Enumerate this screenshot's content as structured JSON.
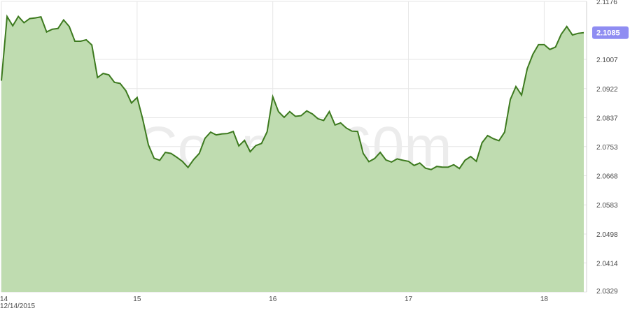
{
  "chart_data": {
    "type": "area",
    "watermark": "Copper 60m",
    "y_ticks": [
      "2.1176",
      "2.1007",
      "2.0922",
      "2.0837",
      "2.0753",
      "2.0668",
      "2.0583",
      "2.0498",
      "2.0414",
      "2.0329"
    ],
    "y_tick_values": [
      2.1176,
      2.1007,
      2.0922,
      2.0837,
      2.0753,
      2.0668,
      2.0583,
      2.0498,
      2.0414,
      2.0329
    ],
    "ylim": [
      2.0329,
      2.1176
    ],
    "x_tick_labels": [
      "14",
      "15",
      "16",
      "17",
      "18"
    ],
    "x_tick_values": [
      0,
      24,
      48,
      72,
      96
    ],
    "xlim": [
      0,
      103.5
    ],
    "date_label": "12/14/2015",
    "last_value": "2.1085",
    "grid": true,
    "colors": {
      "line": "#3d7a1f",
      "fill": "#bfdcb0",
      "badge": "#8f8df2",
      "grid": "#e6e6e6"
    },
    "x": [
      0,
      1,
      2,
      3,
      4,
      5,
      6,
      7,
      8,
      9,
      10,
      11,
      12,
      13,
      14,
      15,
      16,
      17,
      18,
      19,
      20,
      21,
      22,
      23,
      24,
      25,
      26,
      27,
      28,
      29,
      30,
      31,
      32,
      33,
      34,
      35,
      36,
      37,
      38,
      39,
      40,
      41,
      42,
      43,
      44,
      45,
      46,
      47,
      48,
      49,
      50,
      51,
      52,
      53,
      54,
      55,
      56,
      57,
      58,
      59,
      60,
      61,
      62,
      63,
      64,
      65,
      66,
      67,
      68,
      69,
      70,
      71,
      72,
      73,
      74,
      75,
      76,
      77,
      78,
      79,
      80,
      81,
      82,
      83,
      84,
      85,
      86,
      87,
      88,
      89,
      90,
      91,
      92,
      93,
      94,
      95,
      96,
      97,
      98,
      99,
      100,
      101,
      102,
      103
    ],
    "values": [
      2.0945,
      2.1132,
      2.1105,
      2.1132,
      2.1114,
      2.1126,
      2.1128,
      2.1131,
      2.1087,
      2.1095,
      2.1097,
      2.1122,
      2.1103,
      2.106,
      2.106,
      2.1064,
      2.1049,
      2.0954,
      2.0966,
      2.0962,
      2.094,
      2.0937,
      2.0916,
      2.088,
      2.0896,
      2.0833,
      2.0758,
      2.0719,
      2.0713,
      2.0736,
      2.0733,
      2.0722,
      2.071,
      2.0692,
      2.0715,
      2.0733,
      2.0777,
      2.0795,
      2.0787,
      2.079,
      2.0791,
      2.0797,
      2.0755,
      2.0771,
      2.0738,
      2.0756,
      2.0762,
      2.0796,
      2.0898,
      2.0855,
      2.0838,
      2.0855,
      2.0841,
      2.0843,
      2.0857,
      2.0848,
      2.0834,
      2.0829,
      2.0855,
      2.0816,
      2.0822,
      2.0807,
      2.0798,
      2.0797,
      2.0733,
      2.0709,
      2.0718,
      2.0736,
      2.0714,
      2.0708,
      2.0717,
      2.0713,
      2.071,
      2.0698,
      2.0705,
      2.069,
      2.0686,
      2.0695,
      2.0693,
      2.0693,
      2.07,
      2.0689,
      2.0713,
      2.0724,
      2.071,
      2.0764,
      2.0785,
      2.0776,
      2.077,
      2.0795,
      2.089,
      2.0928,
      2.0903,
      2.098,
      2.1022,
      2.105,
      2.105,
      2.1036,
      2.1043,
      2.108,
      2.1103,
      2.1078,
      2.1083,
      2.1085
    ]
  }
}
